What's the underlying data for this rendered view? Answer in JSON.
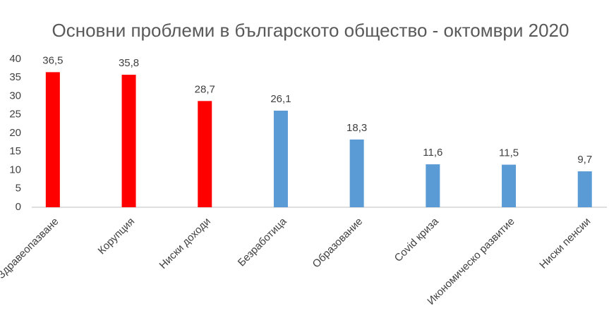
{
  "chart_data": {
    "type": "bar",
    "title": "Основни проблеми в българското общество - октомври 2020",
    "categories": [
      "Здравеопазване",
      "Корупция",
      "Ниски доходи",
      "Безработица",
      "Образование",
      "Covid криза",
      "Икономическо развитие",
      "Ниски пенсии"
    ],
    "values": [
      36.5,
      35.8,
      28.7,
      26.1,
      18.3,
      11.6,
      11.5,
      9.7
    ],
    "value_labels": [
      "36,5",
      "35,8",
      "28,7",
      "26,1",
      "18,3",
      "11,6",
      "11,5",
      "9,7"
    ],
    "colors": [
      "#ff0000",
      "#ff0000",
      "#ff0000",
      "#5b9bd5",
      "#5b9bd5",
      "#5b9bd5",
      "#5b9bd5",
      "#5b9bd5"
    ],
    "ylim": [
      0,
      40
    ],
    "yticks": [
      0,
      5,
      10,
      15,
      20,
      25,
      30,
      35,
      40
    ],
    "grid": false
  }
}
